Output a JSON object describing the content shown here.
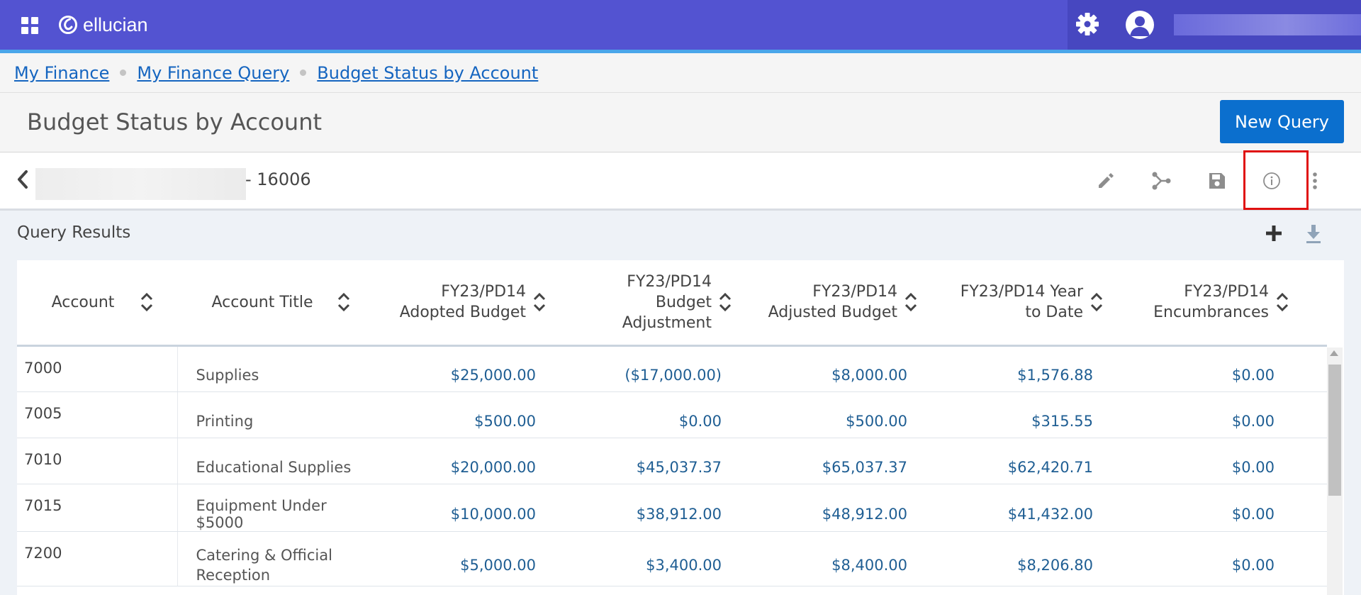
{
  "header": {
    "logo_text": "ellucian",
    "apps_icon": "apps-grid-icon",
    "settings_icon": "gear-icon",
    "avatar_icon": "user-avatar-icon",
    "brand_color": "#5353d1"
  },
  "breadcrumb": {
    "items": [
      {
        "label": "My Finance"
      },
      {
        "label": "My Finance Query"
      },
      {
        "label": "Budget Status by Account"
      }
    ]
  },
  "page": {
    "title": "Budget Status by Account",
    "new_query_label": "New Query",
    "button_color": "#0b6fce"
  },
  "query_bar": {
    "query_id": "- 16006",
    "icons": [
      "chevron-left-icon",
      "pencil-icon",
      "share-icon",
      "save-icon",
      "info-icon",
      "more-vertical-icon"
    ],
    "highlight_color": "#e01010"
  },
  "results": {
    "title": "Query Results",
    "columns": [
      {
        "label": "Account"
      },
      {
        "label": "Account Title"
      },
      {
        "label": "FY23/PD14 Adopted Budget"
      },
      {
        "label": "FY23/PD14 Budget Adjustment"
      },
      {
        "label": "FY23/PD14 Adjusted Budget"
      },
      {
        "label": "FY23/PD14 Year to Date"
      },
      {
        "label": "FY23/PD14 Encumbrances"
      }
    ],
    "rows": [
      {
        "account": "7000",
        "title": "Supplies",
        "adopted": "$25,000.00",
        "adjustment": "($17,000.00)",
        "adjusted": "$8,000.00",
        "ytd": "$1,576.88",
        "encumbrances": "$0.00"
      },
      {
        "account": "7005",
        "title": "Printing",
        "adopted": "$500.00",
        "adjustment": "$0.00",
        "adjusted": "$500.00",
        "ytd": "$315.55",
        "encumbrances": "$0.00"
      },
      {
        "account": "7010",
        "title": "Educational Supplies",
        "adopted": "$20,000.00",
        "adjustment": "$45,037.37",
        "adjusted": "$65,037.37",
        "ytd": "$62,420.71",
        "encumbrances": "$0.00"
      },
      {
        "account": "7015",
        "title": "Equipment Under $5000",
        "adopted": "$10,000.00",
        "adjustment": "$38,912.00",
        "adjusted": "$48,912.00",
        "ytd": "$41,432.00",
        "encumbrances": "$0.00"
      },
      {
        "account": "7200",
        "title": "Catering & Official Reception",
        "adopted": "$5,000.00",
        "adjustment": "$3,400.00",
        "adjusted": "$8,400.00",
        "ytd": "$8,206.80",
        "encumbrances": "$0.00"
      }
    ]
  }
}
